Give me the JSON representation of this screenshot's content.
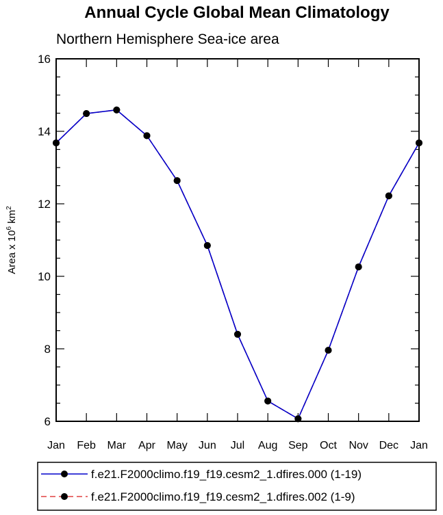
{
  "chart_data": {
    "type": "line",
    "title": "Annual Cycle Global Mean Climatology",
    "subtitle": "Northern Hemisphere Sea-ice area",
    "ylabel": "Area x 10",
    "ylabel_sup_1": "6",
    "ylabel_mid": " km",
    "ylabel_sup_2": "2",
    "ylim": [
      6,
      16
    ],
    "yticks": [
      6,
      8,
      10,
      12,
      14,
      16
    ],
    "categories": [
      "Jan",
      "Feb",
      "Mar",
      "Apr",
      "May",
      "Jun",
      "Jul",
      "Aug",
      "Sep",
      "Oct",
      "Nov",
      "Dec",
      "Jan"
    ],
    "grid": false,
    "legend_position": "bottom",
    "series": [
      {
        "name": "f.e21.F2000climo.f19_f19.cesm2_1.dfires.000 (1-19)",
        "color": "#0000cc",
        "line_style": "solid",
        "values": [
          13.68,
          14.49,
          14.59,
          13.88,
          12.64,
          10.85,
          8.4,
          6.56,
          6.07,
          7.96,
          10.26,
          12.22,
          13.68
        ]
      },
      {
        "name": "f.e21.F2000climo.f19_f19.cesm2_1.dfires.002 (1-9)",
        "color": "#e04040",
        "line_style": "dashed",
        "values": [
          13.68,
          14.49,
          14.59,
          13.88,
          12.64,
          10.85,
          8.4,
          6.56,
          6.07,
          7.96,
          10.26,
          12.22,
          13.68
        ]
      }
    ]
  }
}
